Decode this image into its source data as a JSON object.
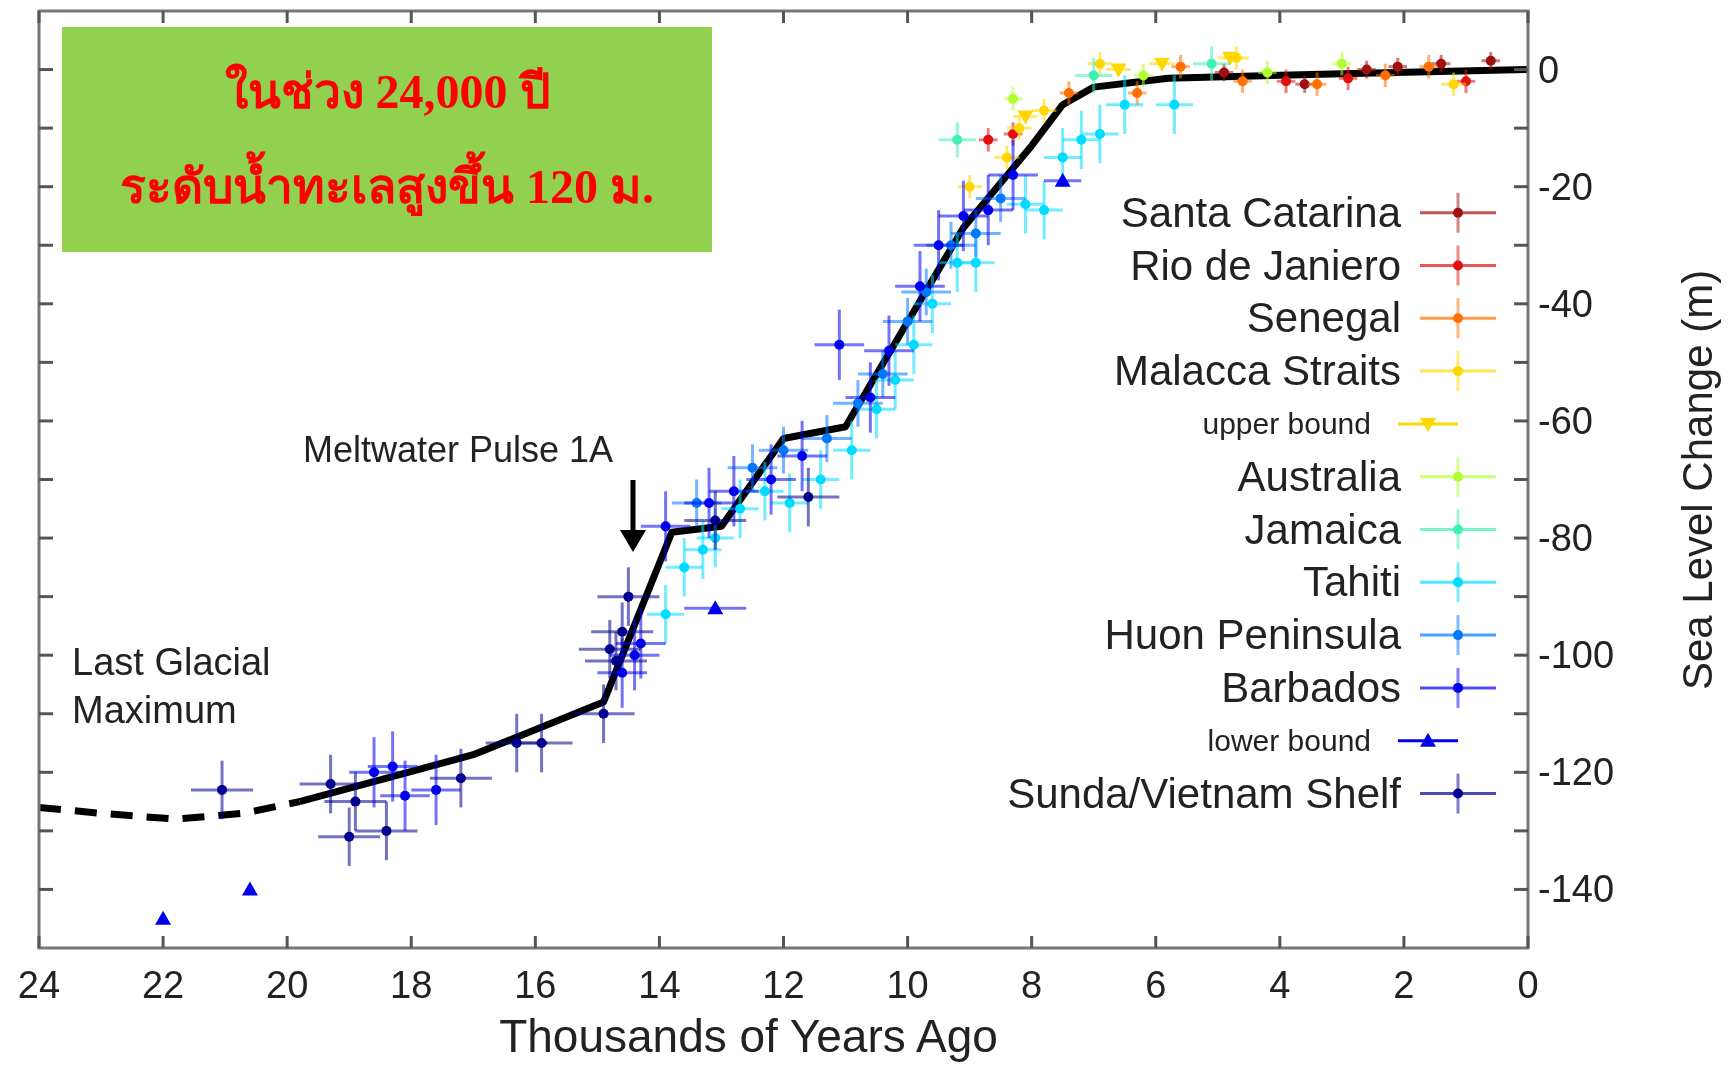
{
  "chart_data": {
    "type": "scatter",
    "xlabel": "Thousands of Years Ago",
    "ylabel": "Sea Level Change (m)",
    "xlim": [
      24,
      0
    ],
    "xticks": [
      24,
      22,
      20,
      18,
      16,
      14,
      12,
      10,
      8,
      6,
      4,
      2,
      0
    ],
    "ylim": [
      -150,
      10
    ],
    "yticks": [
      0,
      {
        "value": -10,
        "label": null
      },
      -20,
      {
        "value": -30,
        "label": null
      },
      -40,
      {
        "value": -50,
        "label": null
      },
      -60,
      {
        "value": -70,
        "label": null
      },
      -80,
      {
        "value": -90,
        "label": null
      },
      -100,
      {
        "value": -110,
        "label": null
      },
      -120,
      {
        "value": -130,
        "label": null
      },
      -140
    ],
    "grid": false,
    "legend": "right",
    "marker": "circle",
    "annotations": [
      "ในช่วง 24,000 ปี\nระดับน้ำทะเลสูงขึ้น 120 ม.",
      "Meltwater Pulse 1A",
      "Last Glacial\nMaximum"
    ],
    "series": [
      {
        "name": "Santa Catarina",
        "color": "#a01010",
        "x": [
          4.9,
          3.6,
          2.6,
          2.1,
          1.4,
          0.6
        ],
        "values": [
          -0.5,
          -2.5,
          0,
          0.5,
          1,
          1.5
        ],
        "errors": [
          1.5,
          1.5,
          1.5,
          1.5,
          1.5,
          1.5
        ],
        "xerrors": [
          0.15,
          0.15,
          0.15,
          0.15,
          0.15,
          0.15
        ]
      },
      {
        "name": "Rio de Janiero",
        "color": "#e01010",
        "x": [
          8.7,
          8.3,
          3.9,
          2.9,
          1.0
        ],
        "values": [
          -12,
          -11,
          -2,
          -1.5,
          -2
        ],
        "errors": [
          2,
          2,
          2,
          2,
          2
        ],
        "xerrors": [
          0.15,
          0.15,
          0.15,
          0.15,
          0.15
        ]
      },
      {
        "name": "Senegal",
        "color": "#ff7000",
        "x": [
          7.4,
          6.3,
          5.6,
          4.6,
          3.4,
          2.3,
          1.6
        ],
        "values": [
          -4,
          -4,
          0.5,
          -2,
          -2.5,
          -1,
          0.5
        ],
        "errors": [
          2,
          2,
          2,
          2,
          2,
          2,
          2
        ],
        "xerrors": [
          0.15,
          0.15,
          0.15,
          0.15,
          0.15,
          0.15,
          0.15
        ]
      },
      {
        "name": "Malacca Straits",
        "color": "#ffd700",
        "x": [
          9.0,
          8.4,
          8.2,
          7.8,
          6.9,
          4.7,
          1.2
        ],
        "values": [
          -20,
          -15,
          -10,
          -7,
          1,
          2,
          -2.5
        ],
        "errors": [
          2,
          2,
          2,
          2,
          2,
          2,
          2
        ],
        "xerrors": [
          0.2,
          0.2,
          0.2,
          0.2,
          0.2,
          0.2,
          0.2
        ]
      },
      {
        "name": "upper bound",
        "color": "#ffd700",
        "marker": "triangle-down",
        "x": [
          8.1,
          6.6,
          5.9,
          4.8
        ],
        "values": [
          -8,
          0,
          1,
          2
        ],
        "xerrors": [
          0.2,
          0.2,
          0.2,
          0.2
        ]
      },
      {
        "name": "Australia",
        "color": "#b0ff30",
        "x": [
          8.3,
          6.2,
          4.2,
          3.0
        ],
        "values": [
          -5,
          -1,
          -0.5,
          1
        ],
        "errors": [
          2,
          2,
          2,
          2
        ],
        "xerrors": [
          0.15,
          0.15,
          0.15,
          0.15
        ]
      },
      {
        "name": "Jamaica",
        "color": "#40f0b0",
        "x": [
          9.2,
          7.0,
          5.1
        ],
        "values": [
          -12,
          -1,
          1
        ],
        "errors": [
          3,
          3,
          3
        ],
        "xerrors": [
          0.3,
          0.3,
          0.3
        ]
      },
      {
        "name": "Tahiti",
        "color": "#00dcff",
        "x": [
          13.9,
          13.6,
          13.3,
          13.1,
          12.7,
          12.3,
          11.9,
          11.4,
          10.9,
          10.5,
          10.2,
          9.9,
          9.6,
          9.2,
          8.9,
          8.1,
          7.8,
          7.5,
          7.2,
          6.9,
          6.5,
          5.7
        ],
        "values": [
          -93,
          -85,
          -82,
          -80,
          -75,
          -72,
          -74,
          -70,
          -65,
          -58,
          -53,
          -47,
          -40,
          -33,
          -33,
          -23,
          -24,
          -15,
          -12,
          -11,
          -6,
          -6
        ],
        "errors": [
          5,
          5,
          5,
          5,
          5,
          5,
          5,
          5,
          5,
          5,
          5,
          5,
          5,
          5,
          5,
          5,
          5,
          5,
          5,
          5,
          5,
          5
        ],
        "xerrors": [
          0.3,
          0.3,
          0.3,
          0.3,
          0.3,
          0.3,
          0.3,
          0.3,
          0.3,
          0.3,
          0.3,
          0.3,
          0.3,
          0.3,
          0.3,
          0.3,
          0.3,
          0.3,
          0.3,
          0.3,
          0.3,
          0.3
        ]
      },
      {
        "name": "Huon Peninsula",
        "color": "#0078ff",
        "x": [
          13.4,
          12.5,
          12.0,
          11.3,
          10.8,
          10.4,
          10.0,
          9.7,
          9.3,
          8.9,
          8.5
        ],
        "values": [
          -74,
          -68,
          -65,
          -63,
          -57,
          -52,
          -43,
          -38,
          -30,
          -28,
          -22
        ],
        "errors": [
          4,
          4,
          4,
          4,
          4,
          4,
          4,
          4,
          4,
          4,
          4
        ],
        "xerrors": [
          0.4,
          0.4,
          0.4,
          0.4,
          0.4,
          0.4,
          0.4,
          0.4,
          0.4,
          0.4,
          0.4
        ]
      },
      {
        "name": "Barbados",
        "color": "#0000ee",
        "x": [
          18.6,
          18.3,
          18.1,
          17.6,
          14.4,
          14.3,
          14.6,
          13.9,
          13.2,
          12.8,
          12.2,
          11.7,
          11.1,
          10.6,
          10.3,
          9.8,
          9.5,
          9.1,
          8.7,
          8.3
        ],
        "values": [
          -120,
          -119,
          -124,
          -123,
          -100,
          -98,
          -103,
          -78,
          -74,
          -72,
          -70,
          -66,
          -47,
          -56,
          -48,
          -37,
          -30,
          -25,
          -24,
          -18
        ],
        "errors": [
          6,
          6,
          6,
          6,
          6,
          6,
          6,
          6,
          6,
          6,
          6,
          6,
          6,
          6,
          6,
          6,
          6,
          6,
          6,
          6
        ],
        "xerrors": [
          0.4,
          0.4,
          0.4,
          0.4,
          0.4,
          0.4,
          0.4,
          0.4,
          0.4,
          0.4,
          0.4,
          0.4,
          0.4,
          0.4,
          0.4,
          0.4,
          0.4,
          0.4,
          0.4,
          0.4
        ]
      },
      {
        "name": "lower bound",
        "color": "#0000ee",
        "marker": "triangle",
        "x": [
          22.0,
          20.6,
          13.1,
          7.5
        ],
        "values": [
          -145,
          -140,
          -92,
          -19
        ],
        "xerrors": [
          null,
          null,
          0.5,
          0.3
        ]
      },
      {
        "name": "Sunda/Vietnam Shelf",
        "color": "#000090",
        "x": [
          21.05,
          19.3,
          19.0,
          18.4,
          18.9,
          17.2,
          16.3,
          15.9,
          14.9,
          14.6,
          14.7,
          14.8,
          14.5,
          13.1,
          11.6
        ],
        "values": [
          -123,
          -122,
          -131,
          -130,
          -125,
          -121,
          -115,
          -115,
          -110,
          -96,
          -101,
          -99,
          -90,
          -77,
          -73
        ],
        "errors": [
          5,
          5,
          5,
          5,
          5,
          5,
          5,
          5,
          5,
          5,
          5,
          5,
          5,
          5,
          5
        ],
        "xerrors": [
          0.5,
          0.5,
          0.5,
          0.5,
          0.5,
          0.5,
          0.5,
          0.5,
          0.5,
          0.5,
          0.5,
          0.5,
          0.5,
          0.5,
          0.5
        ]
      },
      {
        "type": "line",
        "color": "#000000",
        "line_style": "dashed",
        "marker": "none",
        "x": [
          24,
          23,
          21.8,
          20.7,
          19.8
        ],
        "values": [
          -126,
          -127,
          -128,
          -127,
          -125
        ]
      },
      {
        "type": "line",
        "color": "#000000",
        "line_style": "solid",
        "marker": "none",
        "x": [
          19.8,
          17,
          14.9,
          13.8,
          13,
          12,
          11,
          9.1,
          8,
          7.5,
          7,
          5.8,
          3,
          0
        ],
        "values": [
          -125,
          -117,
          -108,
          -79,
          -78,
          -63,
          -61,
          -27,
          -13,
          -6,
          -3,
          -1.5,
          -0.7,
          0
        ]
      }
    ]
  }
}
